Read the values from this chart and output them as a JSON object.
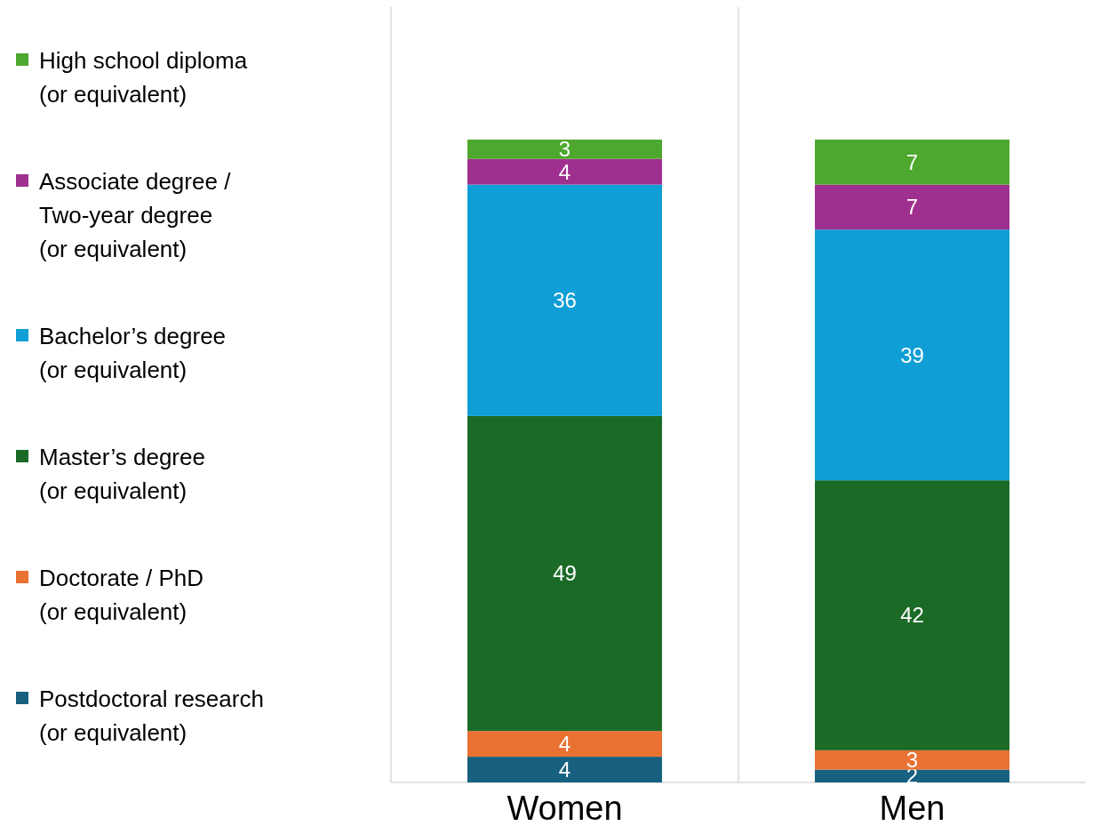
{
  "chart_data": {
    "type": "bar",
    "stacked": true,
    "relative": false,
    "data_labels": true,
    "legend": "left",
    "categories": [
      "Women",
      "Men"
    ],
    "series": [
      {
        "name": "Postdoctoral research (or equivalent)",
        "color": "#17607f",
        "values": [
          4,
          2
        ]
      },
      {
        "name": "Doctorate / PhD (or equivalent)",
        "color": "#e97132",
        "values": [
          4,
          3
        ]
      },
      {
        "name": "Master’s degree (or equivalent)",
        "color": "#1b6b27",
        "values": [
          49,
          42
        ]
      },
      {
        "name": "Bachelor’s degree (or equivalent)",
        "color": "#0f9ed5",
        "values": [
          36,
          39
        ]
      },
      {
        "name": "Associate degree / Two-year degree (or equivalent)",
        "color": "#a0308f",
        "values": [
          4,
          7
        ]
      },
      {
        "name": "High school diploma (or equivalent)",
        "color": "#4ea72e",
        "values": [
          3,
          7
        ]
      }
    ]
  }
}
